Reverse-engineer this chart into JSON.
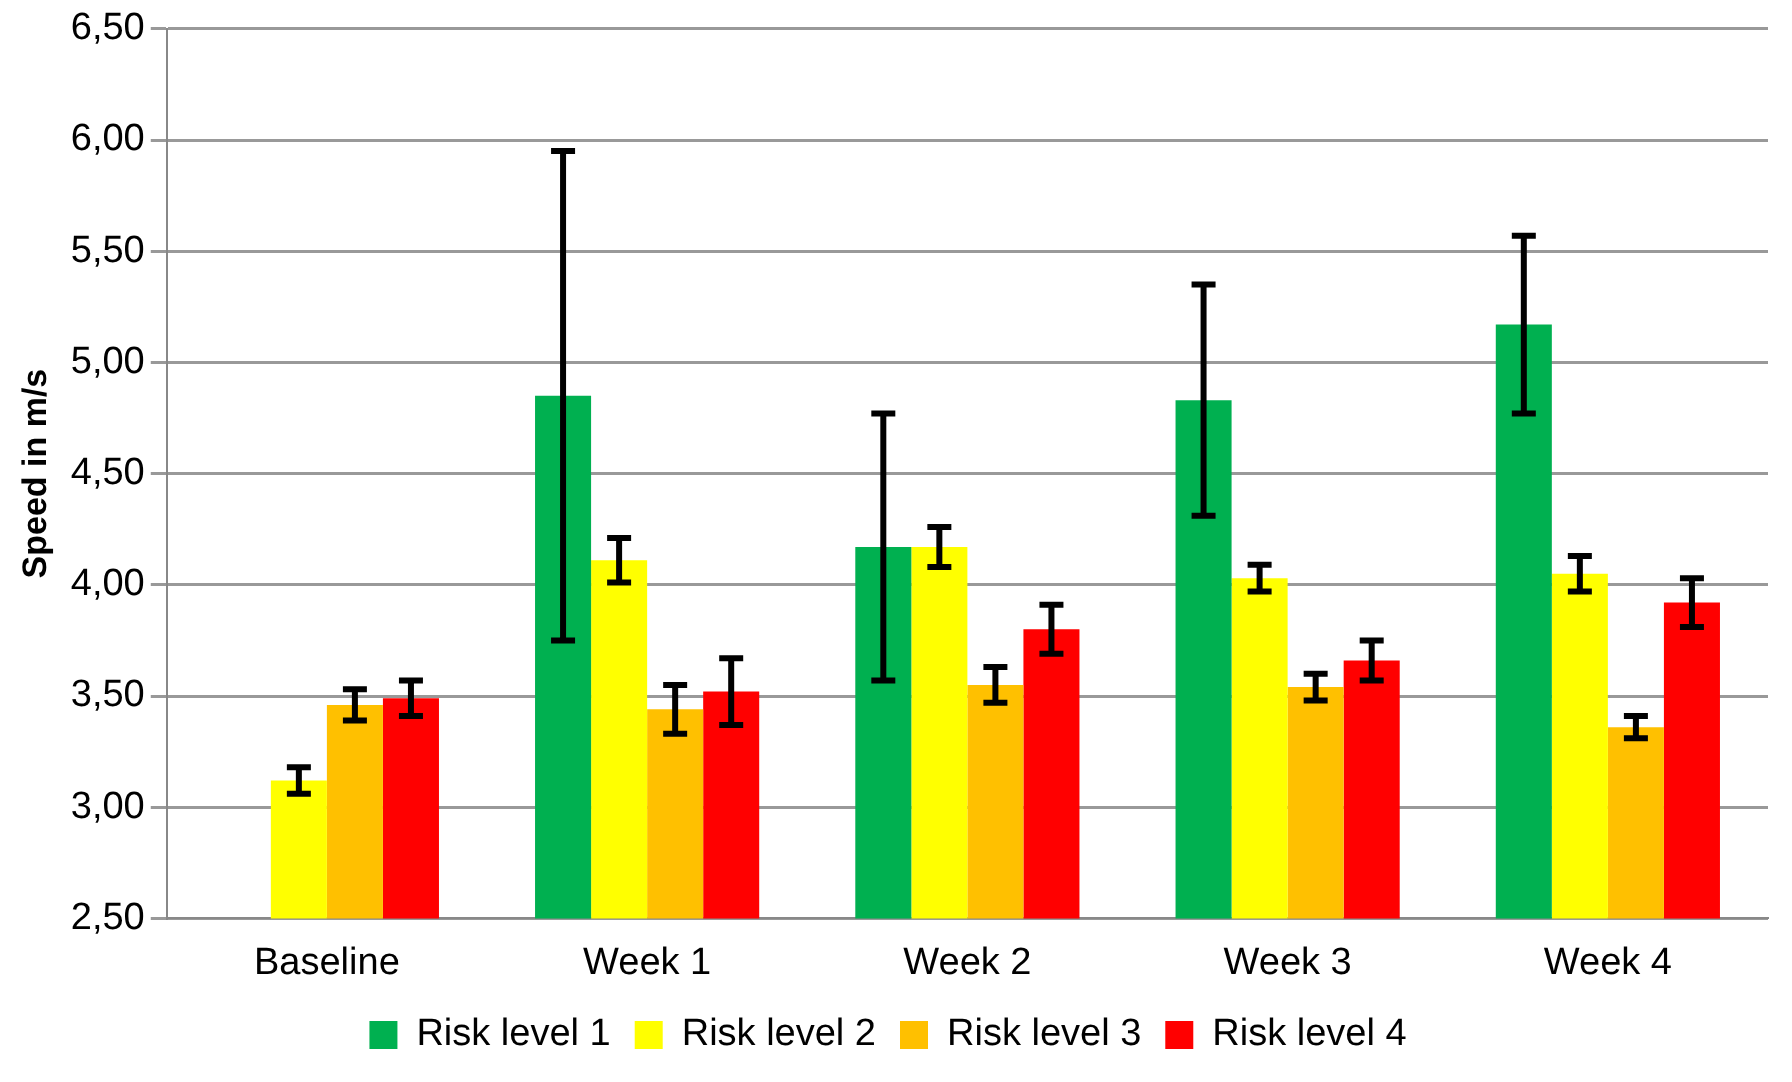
{
  "chart_data": {
    "type": "bar",
    "ylabel": "Speed in m/s",
    "categories": [
      "Baseline",
      "Week 1",
      "Week 2",
      "Week 3",
      "Week 4"
    ],
    "series": [
      {
        "name": "Risk level 1",
        "color": "#00b050",
        "values": [
          null,
          4.85,
          4.17,
          4.83,
          5.17
        ],
        "errors": [
          null,
          1.1,
          0.6,
          0.52,
          0.4
        ]
      },
      {
        "name": "Risk level 2",
        "color": "#ffff00",
        "values": [
          3.12,
          4.11,
          4.17,
          4.03,
          4.05
        ],
        "errors": [
          0.06,
          0.1,
          0.09,
          0.06,
          0.08
        ]
      },
      {
        "name": "Risk level 3",
        "color": "#ffc000",
        "values": [
          3.46,
          3.44,
          3.55,
          3.54,
          3.36
        ],
        "errors": [
          0.07,
          0.11,
          0.08,
          0.06,
          0.05
        ]
      },
      {
        "name": "Risk level 4",
        "color": "#ff0000",
        "values": [
          3.49,
          3.52,
          3.8,
          3.66,
          3.92
        ],
        "errors": [
          0.08,
          0.15,
          0.11,
          0.09,
          0.11
        ]
      }
    ],
    "ylim": [
      2.5,
      6.5
    ],
    "yticks": [
      {
        "value": 2.5,
        "label": "2,50"
      },
      {
        "value": 3,
        "label": "3,00"
      },
      {
        "value": 3.5,
        "label": "3,50"
      },
      {
        "value": 4,
        "label": "4,00"
      },
      {
        "value": 4.5,
        "label": "4,50"
      },
      {
        "value": 5,
        "label": "5,00"
      },
      {
        "value": 5.5,
        "label": "5,50"
      },
      {
        "value": 6,
        "label": "6,00"
      },
      {
        "value": 6.5,
        "label": "6,50"
      }
    ],
    "grid": "y",
    "legend": "bottom"
  }
}
